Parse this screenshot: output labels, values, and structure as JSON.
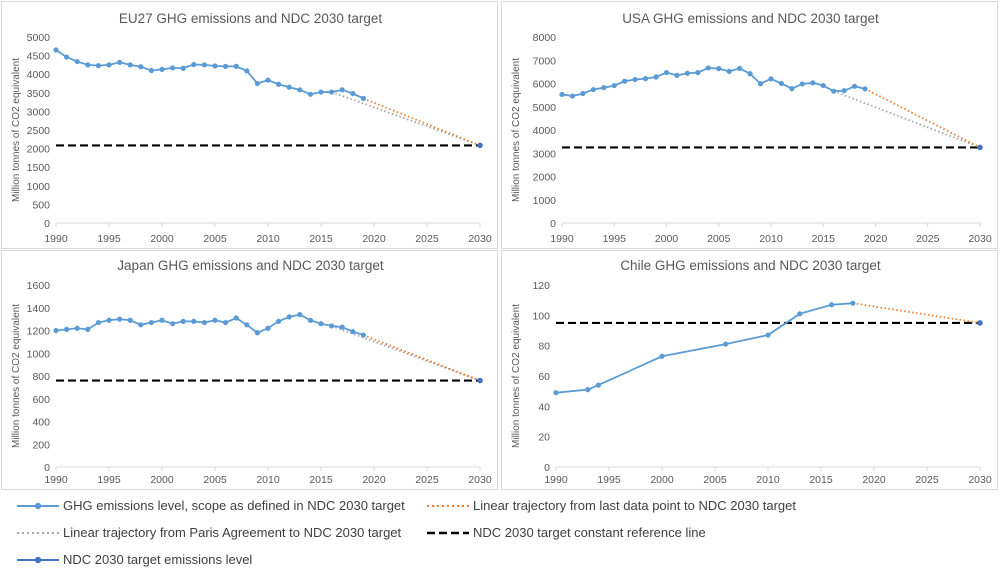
{
  "colors": {
    "series": "#5B9BD5",
    "last_to_target": "#ED7D31",
    "paris_to_target": "#A5A5A5",
    "reference": "#000000",
    "target_marker": "#4472C4"
  },
  "legend": {
    "ghg_series": "GHG emissions level, scope as defined in NDC 2030 target",
    "linear_last": "Linear trajectory from last data point to NDC 2030 target",
    "linear_paris": "Linear trajectory from Paris Agreement to NDC 2030 target",
    "reference_line": "NDC 2030 target constant reference line",
    "target_level": "NDC 2030 target emissions level"
  },
  "chart_data": [
    {
      "type": "line",
      "title": "EU27 GHG emissions and NDC 2030 target",
      "ylabel": "Million tonnes of CO2 equivalent",
      "xlabel": "",
      "xlim": [
        1990,
        2030
      ],
      "ylim": [
        0,
        5000
      ],
      "xticks": [
        1990,
        1995,
        2000,
        2005,
        2010,
        2015,
        2020,
        2025,
        2030
      ],
      "yticks": [
        0,
        500,
        1000,
        1500,
        2000,
        2500,
        3000,
        3500,
        4000,
        4500,
        5000
      ],
      "series": {
        "x": [
          1990,
          1991,
          1992,
          1993,
          1994,
          1995,
          1996,
          1997,
          1998,
          1999,
          2000,
          2001,
          2002,
          2003,
          2004,
          2005,
          2006,
          2007,
          2008,
          2009,
          2010,
          2011,
          2012,
          2013,
          2014,
          2015,
          2016,
          2017,
          2018,
          2019
        ],
        "values": [
          4650,
          4460,
          4340,
          4250,
          4230,
          4250,
          4320,
          4250,
          4200,
          4100,
          4130,
          4170,
          4160,
          4260,
          4250,
          4220,
          4210,
          4210,
          4090,
          3750,
          3840,
          3730,
          3650,
          3580,
          3460,
          3520,
          3520,
          3580,
          3480,
          3350
        ]
      },
      "paris_line": {
        "x": [
          2016,
          2030
        ],
        "values": [
          3520,
          2085
        ]
      },
      "last_line": {
        "x": [
          2019,
          2030
        ],
        "values": [
          3350,
          2085
        ]
      },
      "target": {
        "x": 2030,
        "value": 2085
      },
      "reference": 2085
    },
    {
      "type": "line",
      "title": "USA GHG emissions and NDC 2030 target",
      "ylabel": "Million tonnes of CO2 equivalent",
      "xlabel": "",
      "xlim": [
        1990,
        2030
      ],
      "ylim": [
        0,
        8000
      ],
      "xticks": [
        1990,
        1995,
        2000,
        2005,
        2010,
        2015,
        2020,
        2025,
        2030
      ],
      "yticks": [
        0,
        1000,
        2000,
        3000,
        4000,
        5000,
        6000,
        7000,
        8000
      ],
      "series": {
        "x": [
          1990,
          1991,
          1992,
          1993,
          1994,
          1995,
          1996,
          1997,
          1998,
          1999,
          2000,
          2001,
          2002,
          2003,
          2004,
          2005,
          2006,
          2007,
          2008,
          2009,
          2010,
          2011,
          2012,
          2013,
          2014,
          2015,
          2016,
          2017,
          2018,
          2019
        ],
        "values": [
          5530,
          5460,
          5570,
          5740,
          5820,
          5910,
          6100,
          6170,
          6210,
          6280,
          6470,
          6350,
          6440,
          6470,
          6670,
          6640,
          6520,
          6650,
          6420,
          5990,
          6200,
          6000,
          5780,
          5980,
          6030,
          5910,
          5670,
          5690,
          5880,
          5770
        ]
      },
      "paris_line": {
        "x": [
          2016,
          2030
        ],
        "values": [
          5670,
          3250
        ]
      },
      "last_line": {
        "x": [
          2019,
          2030
        ],
        "values": [
          5770,
          3250
        ]
      },
      "target": {
        "x": 2030,
        "value": 3250
      },
      "reference": 3250
    },
    {
      "type": "line",
      "title": "Japan GHG emissions and NDC 2030 target",
      "ylabel": "Million tonnes of CO2 equivalent",
      "xlabel": "",
      "xlim": [
        1990,
        2030
      ],
      "ylim": [
        0,
        1600
      ],
      "xticks": [
        1990,
        1995,
        2000,
        2005,
        2010,
        2015,
        2020,
        2025,
        2030
      ],
      "yticks": [
        0,
        200,
        400,
        600,
        800,
        1000,
        1200,
        1400,
        1600
      ],
      "series": {
        "x": [
          1990,
          1991,
          1992,
          1993,
          1994,
          1995,
          1996,
          1997,
          1998,
          1999,
          2000,
          2001,
          2002,
          2003,
          2004,
          2005,
          2006,
          2007,
          2008,
          2009,
          2010,
          2011,
          2012,
          2013,
          2014,
          2015,
          2016,
          2017,
          2018,
          2019
        ],
        "values": [
          1200,
          1210,
          1220,
          1210,
          1270,
          1290,
          1300,
          1290,
          1250,
          1270,
          1290,
          1260,
          1280,
          1280,
          1270,
          1290,
          1270,
          1310,
          1250,
          1180,
          1220,
          1280,
          1320,
          1340,
          1290,
          1260,
          1240,
          1230,
          1190,
          1160
        ]
      },
      "paris_line": {
        "x": [
          2016,
          2030
        ],
        "values": [
          1240,
          760
        ]
      },
      "last_line": {
        "x": [
          2019,
          2030
        ],
        "values": [
          1160,
          760
        ]
      },
      "target": {
        "x": 2030,
        "value": 760
      },
      "reference": 760
    },
    {
      "type": "line",
      "title": "Chile GHG emissions and NDC 2030 target",
      "ylabel": "Million tonnes of CO2 equivalent",
      "xlabel": "",
      "xlim": [
        1990,
        2030
      ],
      "ylim": [
        0,
        120
      ],
      "xticks": [
        1990,
        1995,
        2000,
        2005,
        2010,
        2015,
        2020,
        2025,
        2030
      ],
      "yticks": [
        0,
        20,
        40,
        60,
        80,
        100,
        120
      ],
      "series": {
        "x": [
          1990,
          1993,
          1994,
          2000,
          2006,
          2010,
          2013,
          2016,
          2018
        ],
        "values": [
          49,
          51,
          54,
          73,
          81,
          87,
          101,
          107,
          108
        ]
      },
      "last_line": {
        "x": [
          2018,
          2030
        ],
        "values": [
          108,
          95
        ]
      },
      "target": {
        "x": 2030,
        "value": 95
      },
      "reference": 95
    }
  ]
}
